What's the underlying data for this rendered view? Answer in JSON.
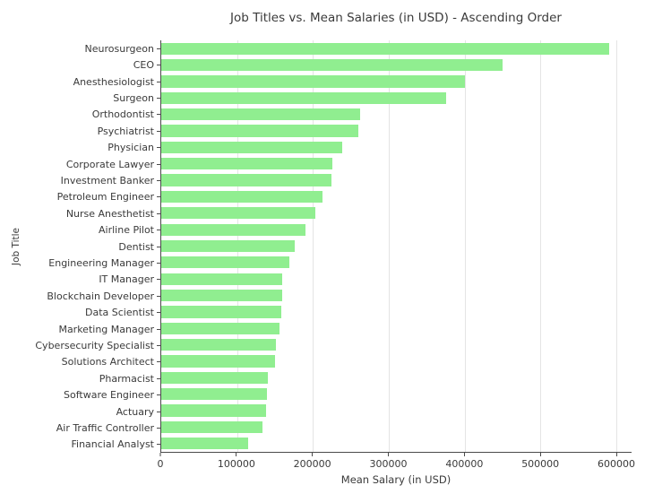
{
  "chart_data": {
    "type": "bar",
    "orientation": "horizontal",
    "title": "Job Titles vs. Mean Salaries (in USD) - Ascending Order",
    "xlabel": "Mean Salary (in USD)",
    "ylabel": "Job Title",
    "order_note": "ascending from bottom to top",
    "categories": [
      "Neurosurgeon",
      "CEO",
      "Anesthesiologist",
      "Surgeon",
      "Orthodontist",
      "Psychiatrist",
      "Physician",
      "Corporate Lawyer",
      "Investment Banker",
      "Petroleum Engineer",
      "Nurse Anesthetist",
      "Airline Pilot",
      "Dentist",
      "Engineering Manager",
      "IT Manager",
      "Blockchain Developer",
      "Data Scientist",
      "Marketing Manager",
      "Cybersecurity Specialist",
      "Solutions Architect",
      "Pharmacist",
      "Software Engineer",
      "Actuary",
      "Air Traffic Controller",
      "Financial Analyst"
    ],
    "values": [
      590000,
      450000,
      400000,
      375000,
      262000,
      260000,
      239000,
      226000,
      224000,
      213000,
      203000,
      190000,
      176000,
      169000,
      160000,
      159000,
      158000,
      156000,
      151000,
      150000,
      140000,
      139000,
      138000,
      134000,
      115000
    ],
    "xlim": [
      0,
      620000
    ],
    "xticks": [
      0,
      100000,
      200000,
      300000,
      400000,
      500000,
      600000
    ],
    "xtick_labels": [
      "0",
      "100000",
      "200000",
      "300000",
      "400000",
      "500000",
      "600000"
    ],
    "grid": true,
    "legend": false,
    "bar_color": "#90ee90",
    "grid_color": "#e4e4e4",
    "axis_color": "#4a4a4a",
    "text_color": "#3a3a3a"
  }
}
